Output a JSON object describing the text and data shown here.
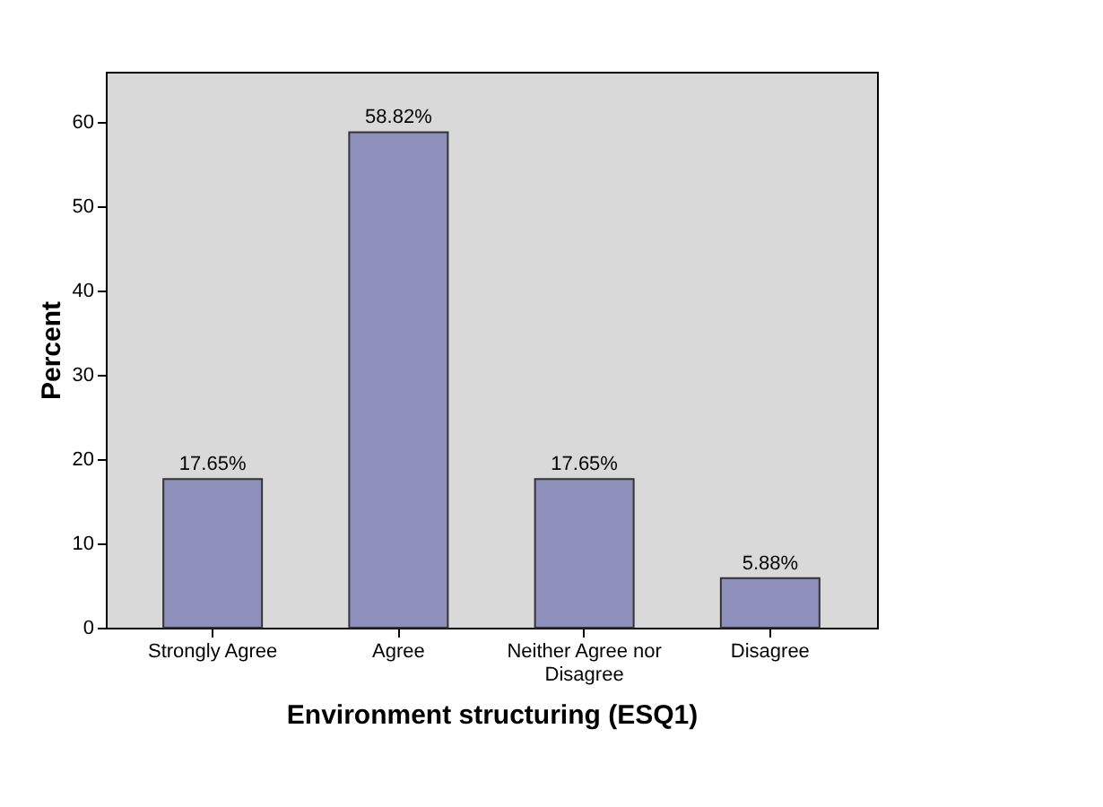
{
  "chart_data": {
    "type": "bar",
    "xlabel": "Environment structuring (ESQ1)",
    "ylabel": "Percent",
    "categories": [
      "Strongly Agree",
      "Agree",
      "Neither Agree nor Disagree",
      "Disagree"
    ],
    "values": [
      17.65,
      58.82,
      17.65,
      5.88
    ],
    "value_labels": [
      "17.65%",
      "58.82%",
      "17.65%",
      "5.88%"
    ],
    "color": "#8e8fbb",
    "ylim": [
      0,
      66
    ],
    "yticks": [
      0,
      10,
      20,
      30,
      40,
      50,
      60
    ],
    "grid": false
  }
}
